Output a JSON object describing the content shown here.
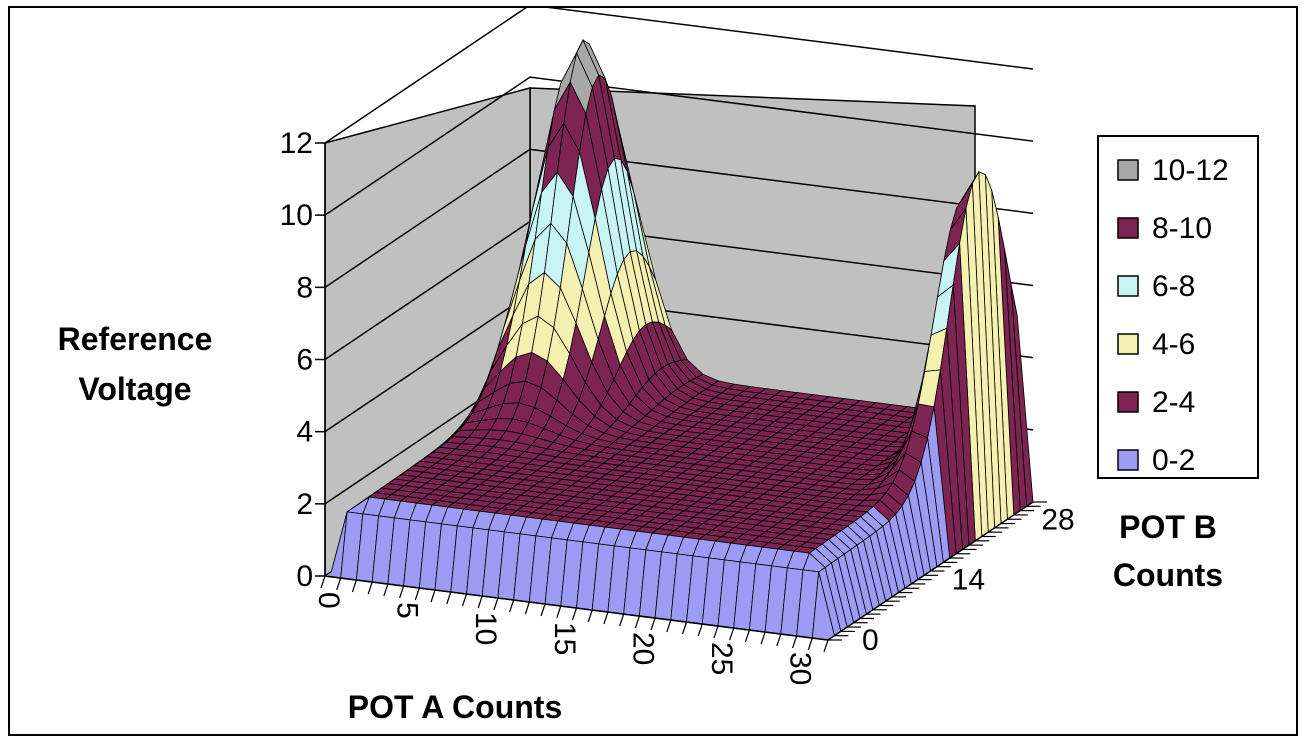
{
  "chart_data": {
    "type": "surface-3d",
    "zlabel_lines": [
      "Reference",
      "Voltage"
    ],
    "xlabel": "POT A Counts",
    "ylabel_lines": [
      "POT B",
      "Counts"
    ],
    "z_ticks": [
      "0",
      "2",
      "4",
      "6",
      "8",
      "10",
      "12"
    ],
    "zlim": [
      0,
      12
    ],
    "x_ticks": [
      "0",
      "5",
      "10",
      "15",
      "20",
      "25",
      "30"
    ],
    "xlim": [
      0,
      32
    ],
    "y_ticks": [
      "0",
      "14",
      "28"
    ],
    "ylim": [
      0,
      32
    ],
    "grid": true,
    "legend_position": "right",
    "legend": [
      {
        "label": "10-12",
        "color": "#a8a8a8"
      },
      {
        "label": "8-10",
        "color": "#7d2452"
      },
      {
        "label": "6-8",
        "color": "#c8f4f4"
      },
      {
        "label": "4-6",
        "color": "#f4f0b0"
      },
      {
        "label": "2-4",
        "color": "#7d2452"
      },
      {
        "label": "0-2",
        "color": "#9c9cf4"
      }
    ],
    "surface": {
      "peaks": [
        {
          "pot_a": 5,
          "pot_b": 28,
          "value": 11.8
        },
        {
          "pot_a": 31,
          "pot_b": 26,
          "value": 11.8
        }
      ],
      "base_value": 2.2,
      "edge_value": 0
    }
  }
}
